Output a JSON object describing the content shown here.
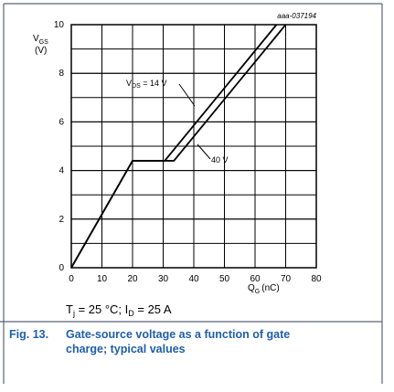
{
  "chart_data": {
    "type": "line",
    "code": "aaa-037194",
    "y_label": {
      "symbol": "V",
      "sub": "GS",
      "unit": "(V)"
    },
    "x_label": {
      "symbol": "Q",
      "sub": "G",
      "unit": "(nC)"
    },
    "xlim": [
      0,
      80
    ],
    "xticks": [
      0,
      10,
      20,
      30,
      40,
      50,
      60,
      70,
      80
    ],
    "ylim": [
      0,
      10
    ],
    "yticks": [
      0,
      2,
      4,
      6,
      8,
      10
    ],
    "grid": true,
    "color": "#000000",
    "series": [
      {
        "x": [
          0,
          20,
          30.5,
          67
        ],
        "values": [
          0,
          4.4,
          4.4,
          10
        ]
      },
      {
        "x": [
          0,
          20,
          33.5,
          70
        ],
        "values": [
          0,
          4.4,
          4.4,
          10
        ]
      }
    ],
    "annotations": [
      {
        "symbol": "V",
        "sub": "DS",
        "rest": " = 14 V"
      },
      {
        "text": "40 V"
      }
    ],
    "conditions": [
      "T",
      "j",
      " = 25 °C; I",
      "D",
      " = 25 A"
    ],
    "caption": {
      "number": "Fig. 13.",
      "text": "Gate-source voltage as a function of gate",
      "text2": "charge; typical values"
    }
  }
}
